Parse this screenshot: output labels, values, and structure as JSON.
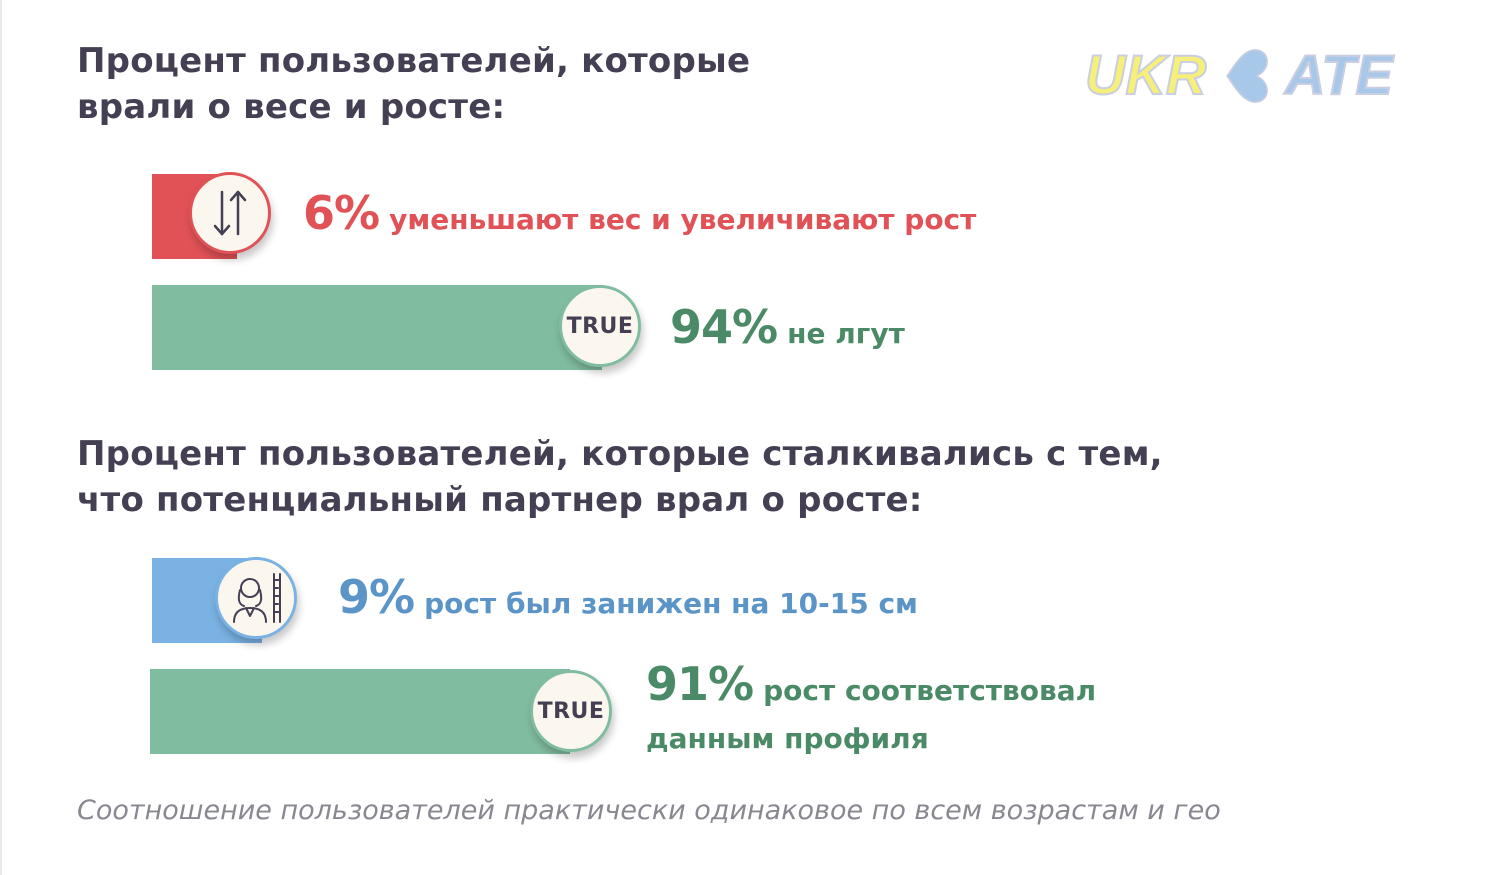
{
  "logo": {
    "text_left": "UKR",
    "text_right": "ATE",
    "heart_color": "#a8c8ea",
    "text_color": "#f6ef7a"
  },
  "headings": [
    "Процент пользователей, которые\nврали о весе и росте:",
    "Процент пользователей, которые сталкивались с тем,\nчто потенциальный партнер врал о росте:"
  ],
  "chart_data": [
    {
      "type": "bar",
      "title": "Процент пользователей, которые врали о весе и росте:",
      "categories": [
        "уменьшают вес и увеличивают рост",
        "не лгут"
      ],
      "values": [
        6,
        94
      ],
      "value_labels": [
        "6%",
        "94%"
      ],
      "badges": [
        "arrows-up-down-icon",
        "TRUE"
      ],
      "colors": [
        "#e05256",
        "#80bc9f"
      ]
    },
    {
      "type": "bar",
      "title": "Процент пользователей, которые сталкивались с тем, что потенциальный партнер врал о росте:",
      "categories": [
        "рост был занижен на 10-15 см",
        "рост соответствовал данным профиля"
      ],
      "values": [
        9,
        91
      ],
      "value_labels": [
        "9%",
        "91%"
      ],
      "badges": [
        "person-height-icon",
        "TRUE"
      ],
      "colors": [
        "#79b2e3",
        "#80bc9f"
      ]
    }
  ],
  "footer": "Соотношение пользователей практически одинаковое по всем возрастам и гео"
}
